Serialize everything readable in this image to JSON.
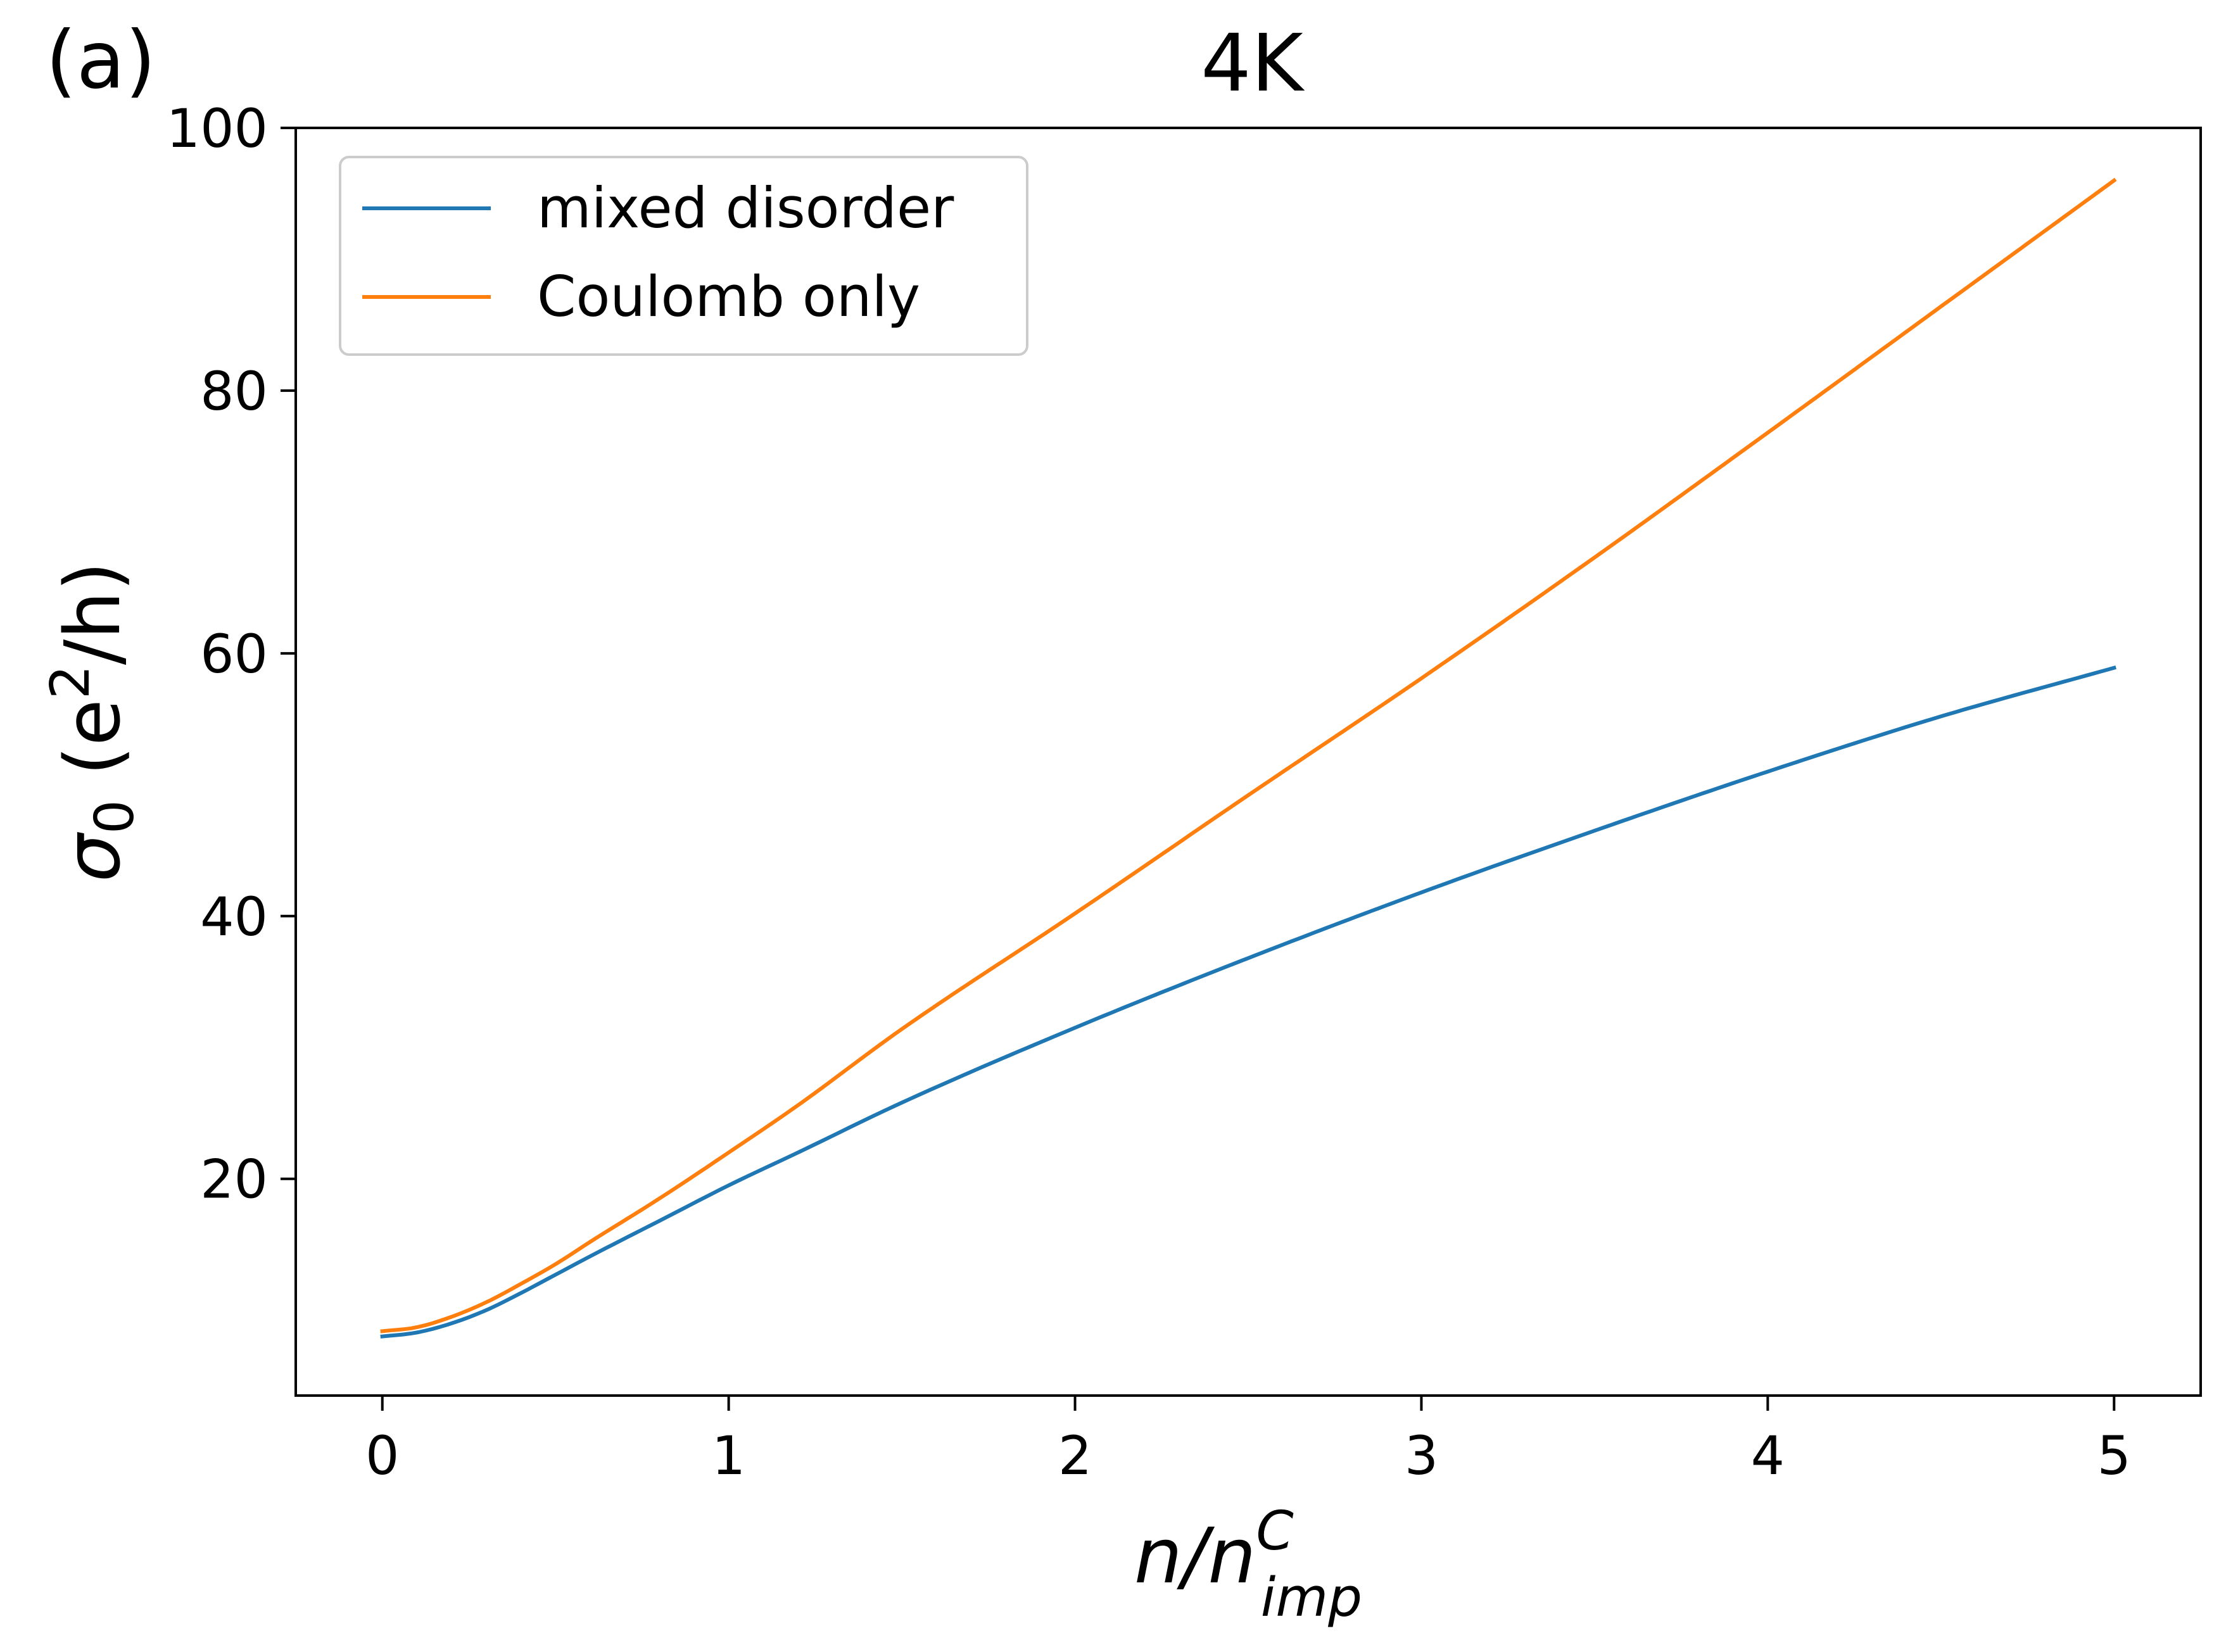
{
  "panel_label": "(a)",
  "chart_data": {
    "type": "line",
    "title": "4K",
    "xlabel": {
      "base": "n/n",
      "sup": "C",
      "sub": "imp"
    },
    "ylabel": {
      "prefix": "σ",
      "sub": "0",
      "unit_open": " (e",
      "unit_sup": "2",
      "unit_close": "/h)"
    },
    "xlim": [
      -0.25,
      5.25
    ],
    "ylim": [
      3.5,
      100
    ],
    "xticks": [
      0,
      1,
      2,
      3,
      4,
      5
    ],
    "yticks": [
      20,
      40,
      60,
      80,
      100
    ],
    "grid": false,
    "legend_position": "top-left",
    "x": [
      0,
      0.1,
      0.2,
      0.3,
      0.4,
      0.5,
      0.6,
      0.8,
      1.0,
      1.2,
      1.5,
      2.0,
      2.5,
      3.0,
      3.5,
      4.0,
      4.5,
      5.0
    ],
    "series": [
      {
        "name": "mixed disorder",
        "color": "#1f77b4",
        "values": [
          8.0,
          8.3,
          9.0,
          10.0,
          11.3,
          12.7,
          14.1,
          16.8,
          19.5,
          22.0,
          25.8,
          31.5,
          36.8,
          41.8,
          46.5,
          51.0,
          55.2,
          58.9
        ]
      },
      {
        "name": "Coulomb only",
        "color": "#ff7f0e",
        "values": [
          8.4,
          8.7,
          9.5,
          10.6,
          12.0,
          13.5,
          15.2,
          18.5,
          22.0,
          25.6,
          31.4,
          40.2,
          49.2,
          58.1,
          67.3,
          76.8,
          86.4,
          96.0
        ]
      }
    ]
  }
}
